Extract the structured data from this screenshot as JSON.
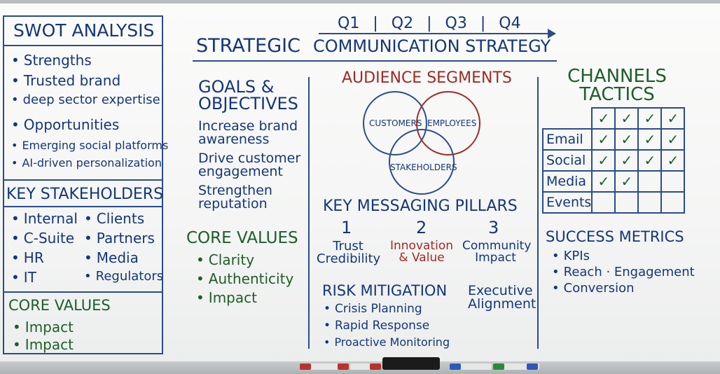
{
  "swot": {
    "title": "SWOT ANALYSIS",
    "items": [
      "Strengths",
      "Trusted brand",
      "deep sector expertise",
      "Opportunities",
      "Emerging social platforms",
      "AI-driven personalization"
    ]
  },
  "stakeholders": {
    "title": "KEY STAKEHOLDERS",
    "left": [
      "Internal",
      "C-Suite",
      "HR",
      "IT"
    ],
    "right": [
      "Clients",
      "Partners",
      "Media",
      "Regulators"
    ]
  },
  "core_values_left": {
    "title": "CORE VALUES",
    "items": [
      "Impact",
      "Impact"
    ]
  },
  "header": {
    "quarters": [
      "Q1",
      "Q2",
      "Q3",
      "Q4"
    ],
    "title_a": "STRATEGIC",
    "title_b": "COMMUNICATION STRATEGY"
  },
  "goals": {
    "title_1": "GOALS &",
    "title_2": "OBJECTIVES",
    "lines": [
      "Increase brand",
      "awareness",
      "Drive customer",
      "engagement",
      "Strengthen",
      "reputation"
    ]
  },
  "core_values_mid": {
    "title": "CORE VALUES",
    "items": [
      "Clarity",
      "Authenticity",
      "Impact"
    ]
  },
  "audience": {
    "title": "AUDIENCE SEGMENTS",
    "customers": "CUSTOMERS",
    "employees": "EMPLOYEES",
    "stakeholders": "STAKEHOLDERS"
  },
  "pillars": {
    "title": "KEY MESSAGING PILLARS",
    "items": [
      {
        "num": "1",
        "line1": "Trust",
        "line2": "Credibility"
      },
      {
        "num": "2",
        "line1": "Innovation",
        "line2": "& Value"
      },
      {
        "num": "3",
        "line1": "Community",
        "line2": "Impact"
      }
    ]
  },
  "risk": {
    "title": "RISK MITIGATION",
    "items": [
      "Crisis Planning",
      "Rapid Response",
      "Proactive Monitoring"
    ]
  },
  "executive": {
    "line1": "Executive",
    "line2": "Alignment"
  },
  "channels": {
    "title_1": "CHANNELS",
    "title_2": "TACTICS",
    "check": "✓",
    "rows": [
      {
        "label": "Email",
        "checks": [
          true,
          true,
          true,
          true
        ]
      },
      {
        "label": "Social",
        "checks": [
          true,
          true,
          true,
          true
        ]
      },
      {
        "label": "Media",
        "checks": [
          true,
          true,
          false,
          false
        ]
      },
      {
        "label": "Events",
        "checks": [
          false,
          false,
          false,
          false
        ]
      }
    ]
  },
  "metrics": {
    "title": "SUCCESS METRICS",
    "items": [
      "KPIs",
      "Reach · Engagement",
      "Conversion"
    ]
  },
  "colors": {
    "blue": "#14367a",
    "green": "#1d5e2a",
    "red": "#a02a24"
  }
}
